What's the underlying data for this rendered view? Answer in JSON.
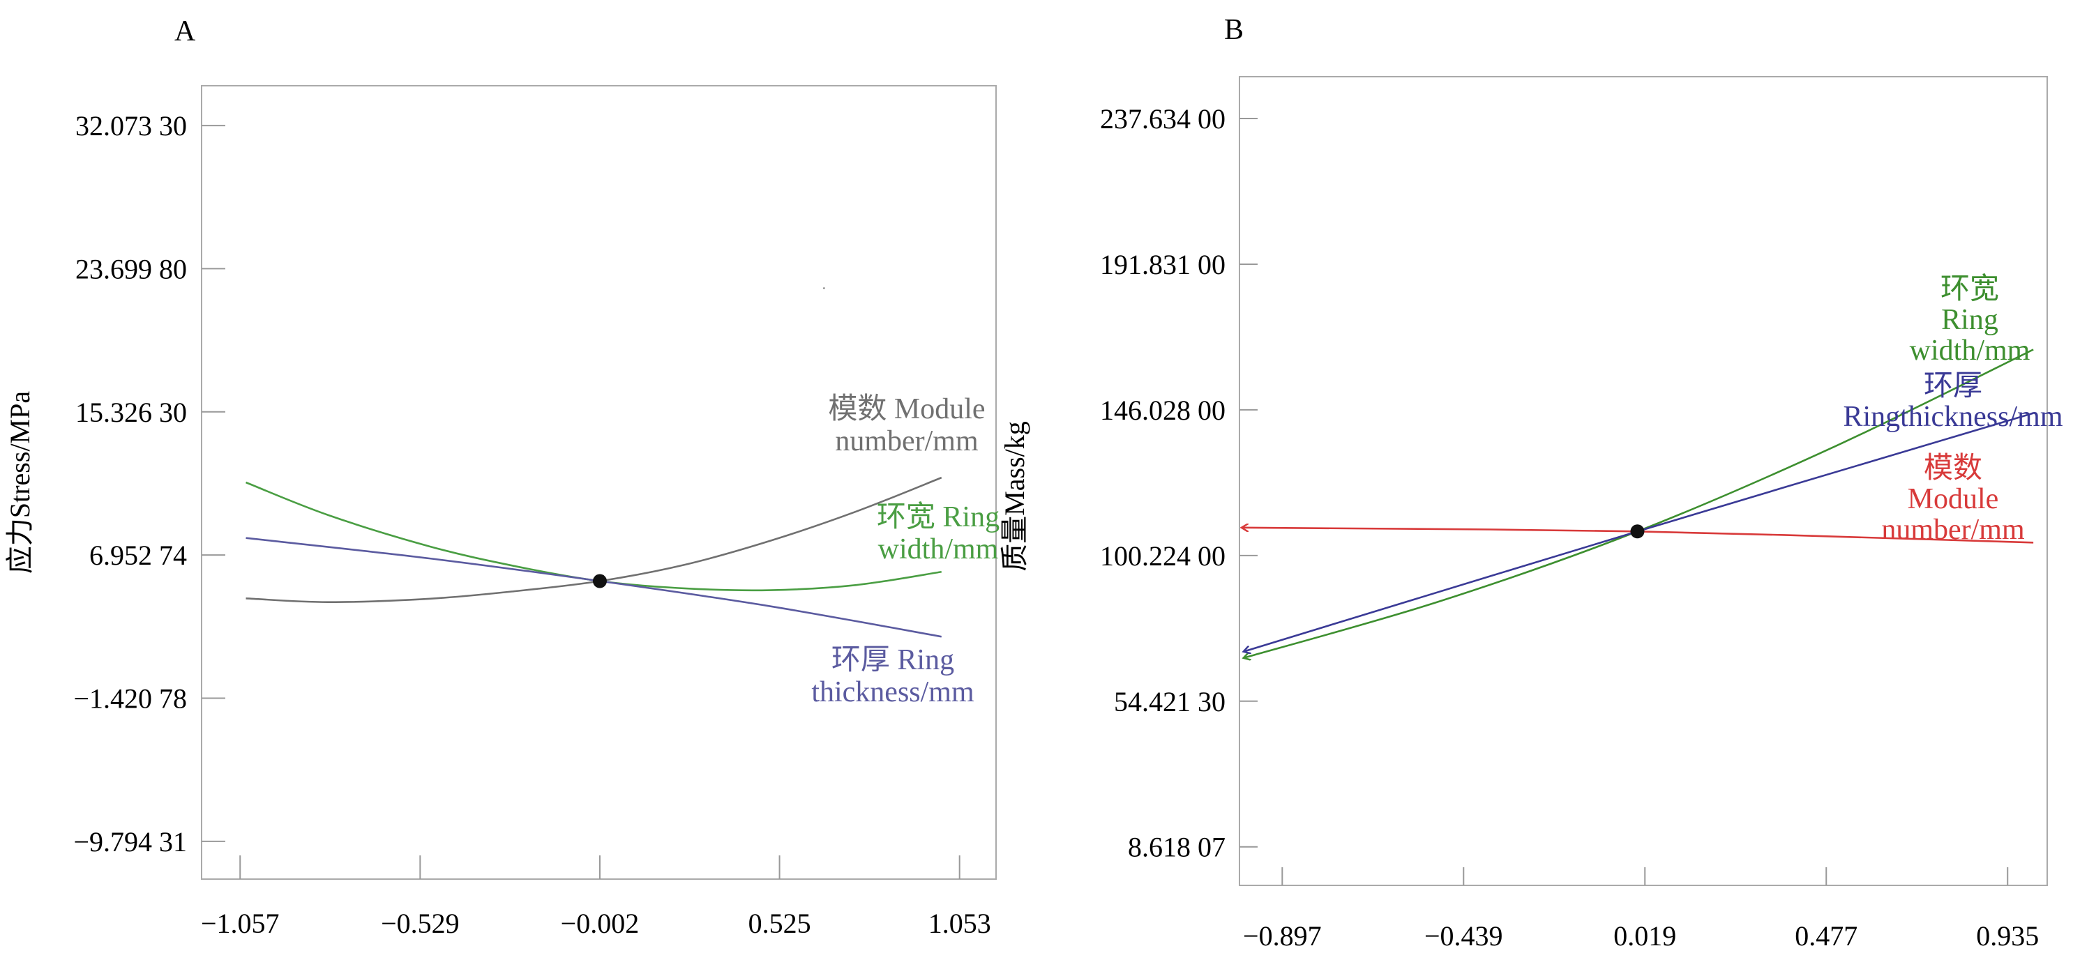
{
  "chart_data": [
    {
      "panel_label": "A",
      "type": "line",
      "ylabel": "应力Stress/MPa",
      "xlabel": "",
      "x_ticks": [
        -1.057,
        -0.529,
        -0.002,
        0.525,
        1.053
      ],
      "x_tick_labels": [
        "−1.057",
        "−0.529",
        "−0.002",
        "0.525",
        "1.053"
      ],
      "xlim": [
        -1.17,
        1.16
      ],
      "y_ticks": [
        32.0733,
        23.6998,
        15.3263,
        6.95274,
        -1.42078,
        -9.79431
      ],
      "y_tick_labels": [
        "32.073 30",
        "23.699 80",
        "15.326 30",
        "6.952 74",
        "−1.420 78",
        "−9.794 31"
      ],
      "ylim": [
        -12.0,
        34.4
      ],
      "center_point": {
        "x": -0.002,
        "y": 5.43
      },
      "series": [
        {
          "name": "模数 Module number/mm",
          "label_lines": [
            "模数 Module",
            "number/mm"
          ],
          "color": "#707070",
          "x": [
            -1.04,
            -0.8,
            -0.5,
            -0.25,
            -0.002,
            0.25,
            0.5,
            0.75,
            1.0
          ],
          "y": [
            4.42,
            4.2,
            4.4,
            4.84,
            5.43,
            6.4,
            7.8,
            9.5,
            11.48
          ]
        },
        {
          "name": "环宽 Ring width/mm",
          "label_lines": [
            "环宽 Ring",
            "width/mm"
          ],
          "color": "#4a9e43",
          "x": [
            -1.04,
            -0.8,
            -0.5,
            -0.25,
            -0.002,
            0.25,
            0.5,
            0.75,
            1.0
          ],
          "y": [
            11.2,
            9.3,
            7.45,
            6.3,
            5.43,
            5.0,
            4.9,
            5.2,
            5.97
          ]
        },
        {
          "name": "环厚 Ring thickness/mm",
          "label_lines": [
            "环厚 Ring",
            "thickness/mm"
          ],
          "color": "#5b5ba0",
          "x": [
            -1.04,
            -0.5,
            -0.002,
            0.5,
            1.0
          ],
          "y": [
            7.95,
            6.75,
            5.43,
            3.95,
            2.18
          ]
        }
      ],
      "annotations": [
        "·"
      ]
    },
    {
      "panel_label": "B",
      "type": "line",
      "ylabel": "质量Mass/kg",
      "xlabel": "",
      "x_ticks": [
        -0.897,
        -0.439,
        0.019,
        0.477,
        0.935
      ],
      "x_tick_labels": [
        "−0.897",
        "−0.439",
        "0.019",
        "0.477",
        "0.935"
      ],
      "xlim": [
        -1.005,
        1.035
      ],
      "y_ticks": [
        237.634,
        191.831,
        146.028,
        100.224,
        54.4213,
        8.61807
      ],
      "y_tick_labels": [
        "237.634 00",
        "191.831 00",
        "146.028 00",
        "100.224 00",
        "54.421 30",
        "8.618 07"
      ],
      "ylim": [
        -3.5,
        250.8
      ],
      "center_point": {
        "x": 0.0,
        "y": 107.8
      },
      "series": [
        {
          "name": "环宽 Ring width/mm",
          "label_lines": [
            "环宽",
            "Ring",
            "width/mm"
          ],
          "color": "#3d8f2f",
          "x": [
            -0.995,
            -0.5,
            0.0,
            0.5,
            1.0
          ],
          "y": [
            68.0,
            85.8,
            107.8,
            134.6,
            165.0
          ]
        },
        {
          "name": "环厚 Ringthickness/mm",
          "label_lines": [
            "环厚",
            "Ringthickness/mm"
          ],
          "color": "#3a3a96",
          "x": [
            -0.995,
            0.0,
            1.0
          ],
          "y": [
            70.0,
            107.8,
            145.0
          ]
        },
        {
          "name": "模数 Module number/mm",
          "label_lines": [
            "模数",
            "Module",
            "number/mm"
          ],
          "color": "#d83a3a",
          "x": [
            -1.0,
            0.0,
            1.0
          ],
          "y": [
            109.0,
            107.8,
            104.3
          ]
        }
      ]
    }
  ]
}
